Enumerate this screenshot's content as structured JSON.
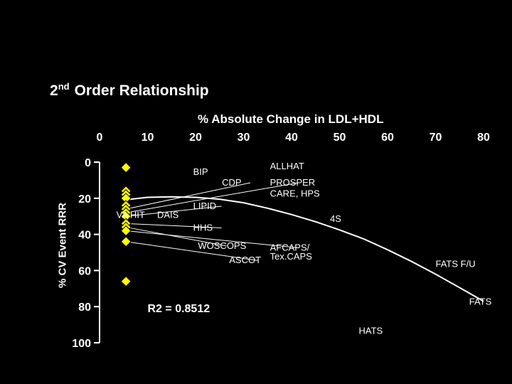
{
  "slide": {
    "title_ordinal": "2",
    "title_suffix": "nd",
    "title_rest": "Order Relationship"
  },
  "chart_data": {
    "type": "scatter",
    "title": "2nd Order Relationship",
    "xlabel": "% Absolute Change in LDL+HDL",
    "ylabel": "% CV Event RRR",
    "xlim": [
      0,
      80
    ],
    "ylim": [
      0,
      100
    ],
    "y_axis_inverted": true,
    "x_ticks": [
      "0",
      "10",
      "20",
      "30",
      "40",
      "50",
      "60",
      "70",
      "80"
    ],
    "y_ticks": [
      "0",
      "20",
      "40",
      "60",
      "80",
      "100"
    ],
    "grid": false,
    "marker_color": "#ffff00",
    "curve_color": "#ffffff",
    "points": [
      {
        "x": 5.5,
        "y": 3
      },
      {
        "x": 5.5,
        "y": 16
      },
      {
        "x": 5.5,
        "y": 18
      },
      {
        "x": 5.5,
        "y": 20
      },
      {
        "x": 5.5,
        "y": 24
      },
      {
        "x": 5.5,
        "y": 26
      },
      {
        "x": 5.5,
        "y": 28
      },
      {
        "x": 5.5,
        "y": 30
      },
      {
        "x": 5.5,
        "y": 34
      },
      {
        "x": 5.5,
        "y": 36
      },
      {
        "x": 5.5,
        "y": 38
      },
      {
        "x": 5.5,
        "y": 44
      },
      {
        "x": 5.5,
        "y": 66
      }
    ],
    "fit_curve": [
      {
        "x": 5,
        "y": 21
      },
      {
        "x": 10,
        "y": 19.5
      },
      {
        "x": 15,
        "y": 19.2
      },
      {
        "x": 20,
        "y": 19.5
      },
      {
        "x": 25,
        "y": 20.5
      },
      {
        "x": 30,
        "y": 22.5
      },
      {
        "x": 35,
        "y": 25.5
      },
      {
        "x": 40,
        "y": 29
      },
      {
        "x": 45,
        "y": 33
      },
      {
        "x": 50,
        "y": 37.5
      },
      {
        "x": 55,
        "y": 42.5
      },
      {
        "x": 60,
        "y": 48.5
      },
      {
        "x": 65,
        "y": 55
      },
      {
        "x": 70,
        "y": 62
      },
      {
        "x": 75,
        "y": 69.5
      },
      {
        "x": 80,
        "y": 77
      }
    ],
    "labels": [
      {
        "text": "BIP",
        "x": 19.5,
        "y": 7
      },
      {
        "text": "ALLHAT",
        "x": 35.5,
        "y": 4
      },
      {
        "text": "CDP",
        "x": 25.5,
        "y": 13
      },
      {
        "text": "PROSPER",
        "x": 35.5,
        "y": 13
      },
      {
        "text": "CARE, HPS",
        "x": 35.5,
        "y": 19
      },
      {
        "text": "VA HIT",
        "x": 3.5,
        "y": 31
      },
      {
        "text": "DAIS",
        "x": 12,
        "y": 31
      },
      {
        "text": "LIPID",
        "x": 19.5,
        "y": 26
      },
      {
        "text": "4S",
        "x": 48,
        "y": 33
      },
      {
        "text": "HHS",
        "x": 19.5,
        "y": 38
      },
      {
        "text": "WOSCOPS",
        "x": 20.5,
        "y": 48
      },
      {
        "text": "AFCAPS/",
        "x": 35.5,
        "y": 49
      },
      {
        "text": "Tex.CAPS",
        "x": 35.5,
        "y": 54
      },
      {
        "text": "ASCOT",
        "x": 27,
        "y": 56
      },
      {
        "text": "FATS F/U",
        "x": 70,
        "y": 58
      },
      {
        "text": "FATS",
        "x": 77,
        "y": 79
      },
      {
        "text": "HATS",
        "x": 54,
        "y": 95
      },
      {
        "text": "R2 = 0.8512",
        "x": 10,
        "y": 83
      }
    ]
  }
}
